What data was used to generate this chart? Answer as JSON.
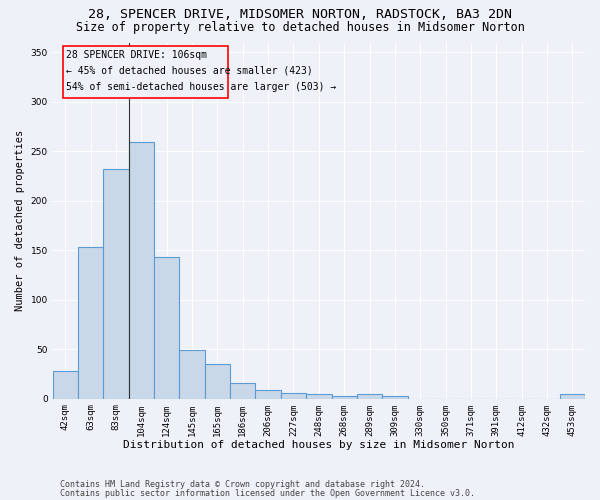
{
  "title1": "28, SPENCER DRIVE, MIDSOMER NORTON, RADSTOCK, BA3 2DN",
  "title2": "Size of property relative to detached houses in Midsomer Norton",
  "xlabel": "Distribution of detached houses by size in Midsomer Norton",
  "ylabel": "Number of detached properties",
  "footer1": "Contains HM Land Registry data © Crown copyright and database right 2024.",
  "footer2": "Contains public sector information licensed under the Open Government Licence v3.0.",
  "categories": [
    "42sqm",
    "63sqm",
    "83sqm",
    "104sqm",
    "124sqm",
    "145sqm",
    "165sqm",
    "186sqm",
    "206sqm",
    "227sqm",
    "248sqm",
    "268sqm",
    "289sqm",
    "309sqm",
    "330sqm",
    "350sqm",
    "371sqm",
    "391sqm",
    "412sqm",
    "432sqm",
    "453sqm"
  ],
  "values": [
    28,
    153,
    232,
    259,
    143,
    49,
    35,
    16,
    9,
    6,
    5,
    3,
    5,
    3,
    0,
    0,
    0,
    0,
    0,
    0,
    5
  ],
  "bar_color": "#c8d8e8",
  "bar_edge_color": "#5b9bd5",
  "annotation_line1": "28 SPENCER DRIVE: 106sqm",
  "annotation_line2": "← 45% of detached houses are smaller (423)",
  "annotation_line3": "54% of semi-detached houses are larger (503) →",
  "vline_x_index": 3.0,
  "ylim": [
    0,
    360
  ],
  "yticks": [
    0,
    50,
    100,
    150,
    200,
    250,
    300,
    350
  ],
  "bg_color": "#eef2f8",
  "grid_color": "#ffffff",
  "title1_fontsize": 9.5,
  "title2_fontsize": 8.5,
  "xlabel_fontsize": 8.0,
  "ylabel_fontsize": 7.5,
  "tick_fontsize": 6.5,
  "annotation_fontsize": 7.0,
  "footer_fontsize": 6.0
}
